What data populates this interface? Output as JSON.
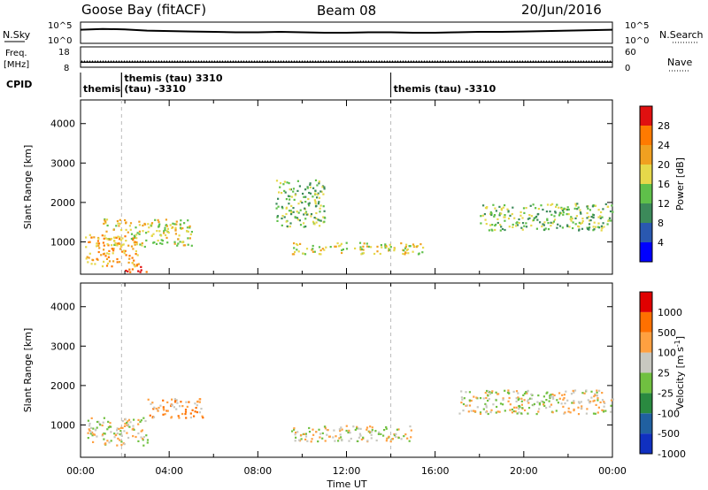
{
  "header": {
    "station": "Goose Bay (fitACF)",
    "beam": "Beam 08",
    "date": "20/Jun/2016"
  },
  "strip": {
    "nsky_label": "N.Sky",
    "nsky_ticks": [
      "10^5",
      "10^0"
    ],
    "nsearch_label": "N.Search",
    "nsearch_ticks": [
      "10^5",
      "10^0"
    ],
    "freq_label_1": "Freq.",
    "freq_label_2": "[MHz]",
    "freq_ticks": [
      "18",
      "8"
    ],
    "nave_label": "Nave",
    "nave_ticks": [
      "60",
      "0"
    ],
    "cpid_label": "CPID",
    "cpid_segments": [
      {
        "hour": 0.0,
        "line1": "themis",
        "line2": ""
      },
      {
        "hour": 1.85,
        "line1": "themis (tau) 3310",
        "line2": ""
      },
      {
        "hour": 1.85,
        "line1": "",
        "line2": "(tau) -3310"
      },
      {
        "hour": 14.0,
        "line1": "themis (tau) -3310",
        "line2": ""
      }
    ],
    "series": [
      {
        "name": "N.Sky",
        "values": [
          3.2,
          3.4,
          3.3,
          3.0,
          2.9,
          2.8,
          2.7,
          2.6,
          2.6,
          2.7,
          2.6,
          2.5,
          2.5,
          2.6,
          2.6,
          2.5,
          2.5,
          2.6,
          2.7,
          2.7,
          2.8,
          2.9,
          3.0,
          3.1,
          3.2
        ]
      },
      {
        "name": "Freq",
        "values": [
          10.5,
          10.5,
          10.5,
          10.5,
          10.5,
          10.5,
          10.5,
          10.5,
          10.5,
          10.5,
          10.5,
          10.5,
          10.5,
          10.5,
          10.5,
          10.5,
          10.5,
          10.5,
          10.5,
          10.5,
          10.5,
          10.5,
          10.5,
          10.5,
          10.5
        ]
      }
    ]
  },
  "chart_data": [
    {
      "type": "heatmap",
      "name": "power",
      "ylabel": "Slant Range [km]",
      "x_range_hours": [
        0,
        24
      ],
      "ylim": [
        180,
        4600
      ],
      "yticks": [
        "1000",
        "2000",
        "3000",
        "4000"
      ],
      "colorbar_label": "Power [dB]",
      "colorbar_ticks": [
        "4",
        "8",
        "12",
        "16",
        "20",
        "24",
        "28"
      ],
      "colors": [
        "#0000ff",
        "#2a58b0",
        "#3c8a5a",
        "#5fc04a",
        "#e6d84a",
        "#f0a020",
        "#ff7a00",
        "#e01010"
      ],
      "echo_regions": [
        {
          "x": [
            0.2,
            2.6
          ],
          "y": [
            400,
            1200
          ],
          "level": 5
        },
        {
          "x": [
            1.0,
            5.0
          ],
          "y": [
            900,
            1600
          ],
          "level": 4
        },
        {
          "x": [
            2.0,
            3.0
          ],
          "y": [
            250,
            450
          ],
          "level": 7
        },
        {
          "x": [
            9.5,
            15.5
          ],
          "y": [
            700,
            1000
          ],
          "level": 4
        },
        {
          "x": [
            8.8,
            11.0
          ],
          "y": [
            1400,
            2600
          ],
          "level": 3
        },
        {
          "x": [
            18.0,
            24.0
          ],
          "y": [
            1300,
            2000
          ],
          "level": 3
        }
      ]
    },
    {
      "type": "heatmap",
      "name": "velocity",
      "ylabel": "Slant Range [km]",
      "xlabel": "Time UT",
      "x_range_hours": [
        0,
        24
      ],
      "xticks": [
        "00:00",
        "04:00",
        "08:00",
        "12:00",
        "16:00",
        "20:00",
        "00:00"
      ],
      "ylim": [
        180,
        4600
      ],
      "yticks": [
        "1000",
        "2000",
        "3000",
        "4000"
      ],
      "colorbar_label": "Velocity [m s",
      "colorbar_label_sup": "-1",
      "colorbar_label_end": "]",
      "colorbar_ticks": [
        "1000",
        "500",
        "100",
        "25",
        "-25",
        "-100",
        "-500",
        "-1000"
      ],
      "colors": [
        "#1030c0",
        "#2060a0",
        "#2a8a40",
        "#70c040",
        "#c8c8c0",
        "#ffa040",
        "#ff7000",
        "#e00000"
      ],
      "echo_regions": [
        {
          "x": [
            0.2,
            3.0
          ],
          "y": [
            500,
            1200
          ],
          "level": 4
        },
        {
          "x": [
            3.0,
            5.5
          ],
          "y": [
            1200,
            1700
          ],
          "level": 5
        },
        {
          "x": [
            9.5,
            15.0
          ],
          "y": [
            600,
            1000
          ],
          "level": 4
        },
        {
          "x": [
            17.0,
            24.0
          ],
          "y": [
            1300,
            1900
          ],
          "level": 4
        }
      ]
    }
  ]
}
